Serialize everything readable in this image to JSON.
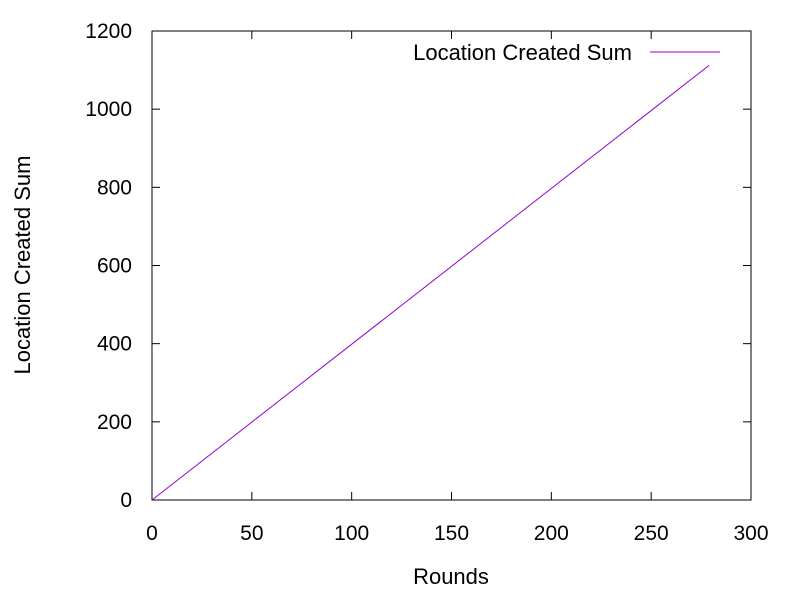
{
  "chart_data": {
    "type": "line",
    "title": "",
    "xlabel": "Rounds",
    "ylabel": "Location Created Sum",
    "xlim": [
      0,
      300
    ],
    "ylim": [
      0,
      1200
    ],
    "xticks": [
      0,
      50,
      100,
      150,
      200,
      250,
      300
    ],
    "yticks": [
      0,
      200,
      400,
      600,
      800,
      1000,
      1200
    ],
    "grid": false,
    "legend_position": "top-right",
    "series": [
      {
        "name": "Location Created Sum",
        "color": "#9400d3",
        "x": [
          0,
          279
        ],
        "y": [
          0,
          1112
        ]
      }
    ]
  }
}
